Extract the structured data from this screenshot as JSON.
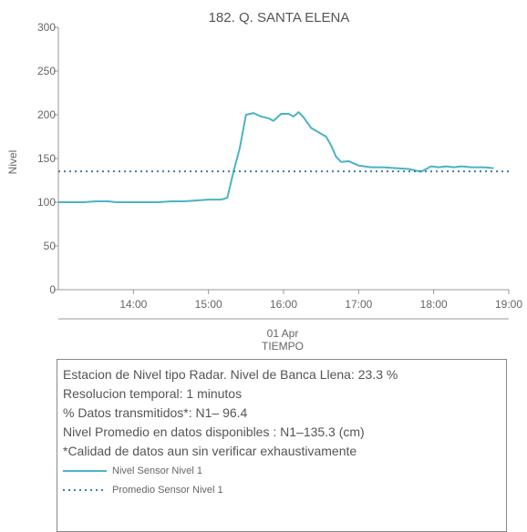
{
  "chart_data": {
    "type": "line",
    "title": "182. Q. SANTA ELENA",
    "ylabel": "Nivel",
    "xlabel": "TIEMPO",
    "date_label": "01 Apr",
    "x_ticks": [
      "14:00",
      "15:00",
      "16:00",
      "17:00",
      "18:00",
      "19:00"
    ],
    "x_tick_hours": [
      14,
      15,
      16,
      17,
      18,
      19
    ],
    "y_ticks": [
      0,
      50,
      100,
      150,
      200,
      250,
      300
    ],
    "xlim": [
      "13:00",
      "19:00"
    ],
    "ylim": [
      0,
      300
    ],
    "grid": false,
    "series": [
      {
        "name": "Nivel Sensor Nivel 1",
        "style": "solid",
        "color": "#4bb3c4",
        "points": [
          {
            "x": "13:00",
            "y": 100
          },
          {
            "x": "13:10",
            "y": 100
          },
          {
            "x": "13:20",
            "y": 100
          },
          {
            "x": "13:30",
            "y": 101
          },
          {
            "x": "13:40",
            "y": 101
          },
          {
            "x": "13:46",
            "y": 100
          },
          {
            "x": "14:00",
            "y": 100
          },
          {
            "x": "14:10",
            "y": 100
          },
          {
            "x": "14:20",
            "y": 100
          },
          {
            "x": "14:30",
            "y": 101
          },
          {
            "x": "14:40",
            "y": 101
          },
          {
            "x": "14:50",
            "y": 102
          },
          {
            "x": "15:00",
            "y": 103
          },
          {
            "x": "15:10",
            "y": 103
          },
          {
            "x": "15:15",
            "y": 105
          },
          {
            "x": "15:20",
            "y": 135
          },
          {
            "x": "15:25",
            "y": 162
          },
          {
            "x": "15:30",
            "y": 200
          },
          {
            "x": "15:36",
            "y": 202
          },
          {
            "x": "15:42",
            "y": 198
          },
          {
            "x": "15:48",
            "y": 196
          },
          {
            "x": "15:52",
            "y": 193
          },
          {
            "x": "15:58",
            "y": 201
          },
          {
            "x": "16:04",
            "y": 201
          },
          {
            "x": "16:08",
            "y": 198
          },
          {
            "x": "16:12",
            "y": 203
          },
          {
            "x": "16:16",
            "y": 197
          },
          {
            "x": "16:22",
            "y": 185
          },
          {
            "x": "16:28",
            "y": 180
          },
          {
            "x": "16:34",
            "y": 175
          },
          {
            "x": "16:38",
            "y": 165
          },
          {
            "x": "16:42",
            "y": 152
          },
          {
            "x": "16:46",
            "y": 146
          },
          {
            "x": "16:52",
            "y": 147
          },
          {
            "x": "17:00",
            "y": 142
          },
          {
            "x": "17:10",
            "y": 140
          },
          {
            "x": "17:20",
            "y": 140
          },
          {
            "x": "17:30",
            "y": 139
          },
          {
            "x": "17:40",
            "y": 138
          },
          {
            "x": "17:46",
            "y": 136
          },
          {
            "x": "17:50",
            "y": 135
          },
          {
            "x": "17:54",
            "y": 138
          },
          {
            "x": "17:58",
            "y": 141
          },
          {
            "x": "18:04",
            "y": 140
          },
          {
            "x": "18:10",
            "y": 141
          },
          {
            "x": "18:16",
            "y": 140
          },
          {
            "x": "18:22",
            "y": 141
          },
          {
            "x": "18:30",
            "y": 140
          },
          {
            "x": "18:40",
            "y": 140
          },
          {
            "x": "18:48",
            "y": 139
          }
        ]
      },
      {
        "name": "Promedio Sensor Nivel 1",
        "style": "dotted",
        "color": "#3a7fa8",
        "constant": 135.3
      }
    ]
  },
  "info": {
    "lines": [
      "Estacion de Nivel tipo Radar. Nivel de Banca Llena: 23.3 %",
      "Resolucion temporal: 1 minutos",
      "% Datos transmitidos*: N1– 96.4",
      "Nivel Promedio en datos disponibles : N1–135.3 (cm)",
      "*Calidad de datos aun sin verificar exhaustivamente"
    ],
    "legend": [
      {
        "label": "Nivel Sensor Nivel 1",
        "style": "solid",
        "color": "#4bb3c4"
      },
      {
        "label": "Promedio Sensor Nivel 1",
        "style": "dotted",
        "color": "#3a7fa8"
      }
    ]
  }
}
